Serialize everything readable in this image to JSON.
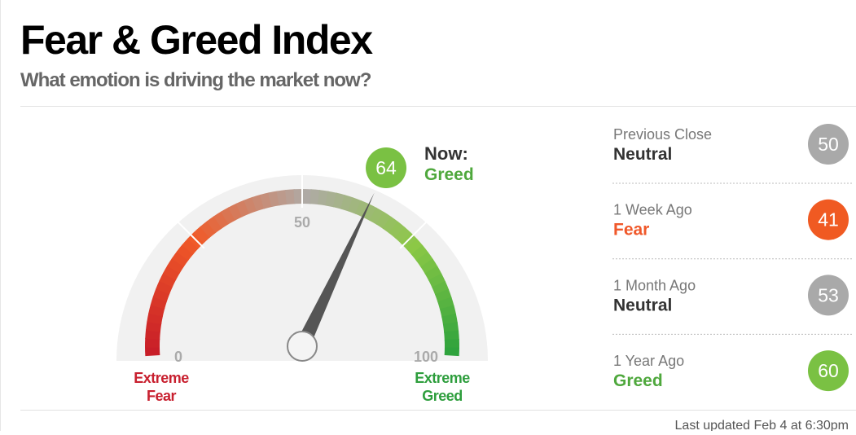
{
  "header": {
    "title": "Fear & Greed Index",
    "subtitle": "What emotion is driving the market now?"
  },
  "gauge": {
    "value": 64,
    "now_label": "Now:",
    "rating": "Greed",
    "rating_color": "#4fa83d",
    "bubble_color": "#7ac143",
    "ticks": [
      0,
      50,
      100
    ],
    "left_label": [
      "Extreme",
      "Fear"
    ],
    "right_label": [
      "Extreme",
      "Greed"
    ]
  },
  "history": [
    {
      "label": "Previous Close",
      "rating": "Neutral",
      "value": 50,
      "rating_color": "#333333",
      "color": "#a9a9a9"
    },
    {
      "label": "1 Week Ago",
      "rating": "Fear",
      "value": 41,
      "rating_color": "#f0582a",
      "color": "#f05a22"
    },
    {
      "label": "1 Month Ago",
      "rating": "Neutral",
      "value": 53,
      "rating_color": "#333333",
      "color": "#a9a9a9"
    },
    {
      "label": "1 Year Ago",
      "rating": "Greed",
      "value": 60,
      "rating_color": "#4fa83d",
      "color": "#7ac143"
    }
  ],
  "footer": "Last updated Feb 4 at 6:30pm"
}
